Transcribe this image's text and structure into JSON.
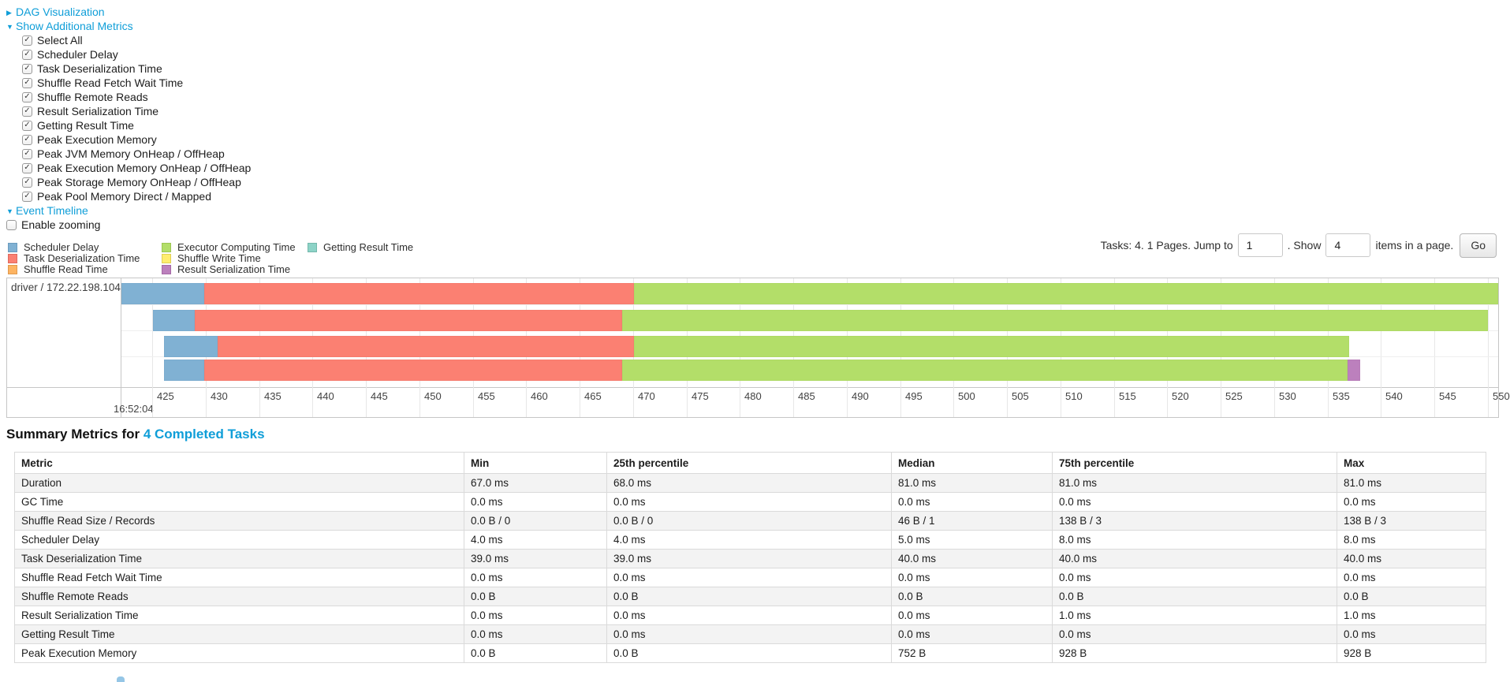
{
  "icons": {
    "caret_right": "▶",
    "caret_down": "▼",
    "check": "✓"
  },
  "toggles": {
    "dag_label": "DAG Visualization",
    "metrics_label": "Show Additional Metrics",
    "timeline_label": "Event Timeline",
    "enable_zooming_label": "Enable zooming"
  },
  "metrics_panel": {
    "all_checked": true,
    "items": [
      "Select All",
      "Scheduler Delay",
      "Task Deserialization Time",
      "Shuffle Read Fetch Wait Time",
      "Shuffle Remote Reads",
      "Result Serialization Time",
      "Getting Result Time",
      "Peak Execution Memory",
      "Peak JVM Memory OnHeap / OffHeap",
      "Peak Execution Memory OnHeap / OffHeap",
      "Peak Storage Memory OnHeap / OffHeap",
      "Peak Pool Memory Direct / Mapped"
    ]
  },
  "legend": {
    "columns": [
      [
        {
          "label": "Scheduler Delay",
          "color": "#80B1D3",
          "border": "#6b9cbf"
        },
        {
          "label": "Task Deserialization Time",
          "color": "#FB8072",
          "border": "#e06a5e"
        },
        {
          "label": "Shuffle Read Time",
          "color": "#FDB462",
          "border": "#e09a4e"
        }
      ],
      [
        {
          "label": "Executor Computing Time",
          "color": "#B3DE69",
          "border": "#9cc653"
        },
        {
          "label": "Shuffle Write Time",
          "color": "#FFED6F",
          "border": "#e0cf55"
        },
        {
          "label": "Result Serialization Time",
          "color": "#BC80BD",
          "border": "#a569a6"
        }
      ],
      [
        {
          "label": "Getting Result Time",
          "color": "#8DD3C7",
          "border": "#74b8ac"
        }
      ]
    ]
  },
  "pagination": {
    "tasks_text": "Tasks: 4. 1 Pages. Jump to",
    "jump_value": "1",
    "show_text": ". Show",
    "show_value": "4",
    "items_text": "items in a page.",
    "go_label": "Go"
  },
  "chart_data": {
    "type": "timeline-gantt",
    "group_label": "driver / 172.22.198.104",
    "x_axis": {
      "range_ms": [
        422.0,
        551.0
      ],
      "ticks": [
        425,
        430,
        435,
        440,
        445,
        450,
        455,
        460,
        465,
        470,
        475,
        480,
        485,
        490,
        495,
        500,
        505,
        510,
        515,
        520,
        525,
        530,
        535,
        540,
        545,
        550
      ],
      "major_label": "16:52:04",
      "grid": true
    },
    "colors": {
      "scheduler_delay": {
        "fill": "#80B1D3",
        "border": "#6b9cbf"
      },
      "task_deserialization": {
        "fill": "#FB8072",
        "border": "#e06a5e"
      },
      "executor_computing": {
        "fill": "#B3DE69",
        "border": "#9cc653"
      },
      "result_serialization": {
        "fill": "#BC80BD",
        "border": "#a569a6"
      }
    },
    "tasks": [
      {
        "segments": [
          {
            "name": "scheduler_delay",
            "start": 422.0,
            "end": 429.9
          },
          {
            "name": "task_deserialization",
            "start": 429.9,
            "end": 470.1
          },
          {
            "name": "executor_computing",
            "start": 470.1,
            "end": 551.0
          }
        ]
      },
      {
        "segments": [
          {
            "name": "scheduler_delay",
            "start": 425.1,
            "end": 429.0
          },
          {
            "name": "task_deserialization",
            "start": 429.0,
            "end": 469.0
          },
          {
            "name": "executor_computing",
            "start": 469.0,
            "end": 550.0
          }
        ]
      },
      {
        "segments": [
          {
            "name": "scheduler_delay",
            "start": 426.1,
            "end": 431.1
          },
          {
            "name": "task_deserialization",
            "start": 431.1,
            "end": 470.1
          },
          {
            "name": "executor_computing",
            "start": 470.1,
            "end": 537.0
          }
        ]
      },
      {
        "segments": [
          {
            "name": "scheduler_delay",
            "start": 426.1,
            "end": 429.9
          },
          {
            "name": "task_deserialization",
            "start": 429.9,
            "end": 469.0
          },
          {
            "name": "executor_computing",
            "start": 469.0,
            "end": 536.9
          },
          {
            "name": "result_serialization",
            "start": 536.9,
            "end": 538.1
          }
        ]
      }
    ]
  },
  "summary": {
    "title_prefix": "Summary Metrics for ",
    "title_link": "4 Completed Tasks",
    "table": {
      "headers": [
        "Metric",
        "Min",
        "25th percentile",
        "Median",
        "75th percentile",
        "Max"
      ],
      "rows": [
        [
          "Duration",
          "67.0 ms",
          "68.0 ms",
          "81.0 ms",
          "81.0 ms",
          "81.0 ms"
        ],
        [
          "GC Time",
          "0.0 ms",
          "0.0 ms",
          "0.0 ms",
          "0.0 ms",
          "0.0 ms"
        ],
        [
          "Shuffle Read Size / Records",
          "0.0 B / 0",
          "0.0 B / 0",
          "46 B / 1",
          "138 B / 3",
          "138 B / 3"
        ],
        [
          "Scheduler Delay",
          "4.0 ms",
          "4.0 ms",
          "5.0 ms",
          "8.0 ms",
          "8.0 ms"
        ],
        [
          "Task Deserialization Time",
          "39.0 ms",
          "39.0 ms",
          "40.0 ms",
          "40.0 ms",
          "40.0 ms"
        ],
        [
          "Shuffle Read Fetch Wait Time",
          "0.0 ms",
          "0.0 ms",
          "0.0 ms",
          "0.0 ms",
          "0.0 ms"
        ],
        [
          "Shuffle Remote Reads",
          "0.0 B",
          "0.0 B",
          "0.0 B",
          "0.0 B",
          "0.0 B"
        ],
        [
          "Result Serialization Time",
          "0.0 ms",
          "0.0 ms",
          "0.0 ms",
          "1.0 ms",
          "1.0 ms"
        ],
        [
          "Getting Result Time",
          "0.0 ms",
          "0.0 ms",
          "0.0 ms",
          "0.0 ms",
          "0.0 ms"
        ],
        [
          "Peak Execution Memory",
          "0.0 B",
          "0.0 B",
          "752 B",
          "928 B",
          "928 B"
        ]
      ]
    }
  }
}
